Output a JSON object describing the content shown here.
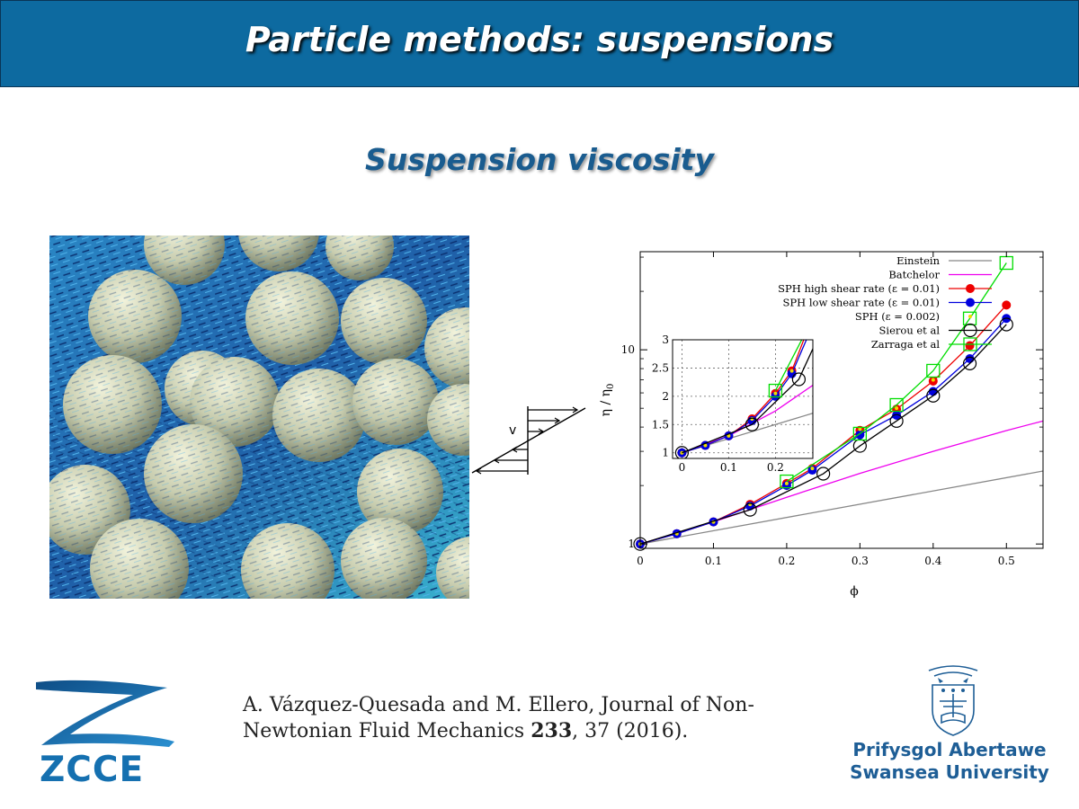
{
  "header": {
    "title": "Particle methods: suspensions"
  },
  "subtitle": "Suspension viscosity",
  "flow_diagram": {
    "label": "v"
  },
  "chart_data": {
    "type": "line",
    "xlabel": "ϕ",
    "ylabel": "η / η0",
    "ylabel_main": "η / η",
    "ylabel_sub": "0",
    "yscale": "log",
    "xlim": [
      0,
      0.55
    ],
    "ylim": [
      0.95,
      32
    ],
    "x_ticks": [
      "0",
      "0.1",
      "0.2",
      "0.3",
      "0.4",
      "0.5"
    ],
    "y_ticks": [
      "1",
      "10"
    ],
    "legend_position": "top-right",
    "series": [
      {
        "name": "Einstein",
        "color": "#888888",
        "kind": "line",
        "x": [
          0,
          0.55
        ],
        "y": [
          1,
          2.375
        ]
      },
      {
        "name": "Batchelor",
        "color": "#ee00ee",
        "kind": "line",
        "x": [
          0,
          0.1,
          0.2,
          0.3,
          0.4,
          0.5,
          0.55
        ],
        "y": [
          1,
          1.3,
          1.74,
          2.31,
          3.0,
          3.84,
          4.3
        ]
      },
      {
        "name": "SPH high shear rate (ε = 0.01)",
        "color": "#ee0000",
        "kind": "line-filled",
        "x": [
          0,
          0.05,
          0.1,
          0.15,
          0.2,
          0.235,
          0.3,
          0.35,
          0.4,
          0.45,
          0.5
        ],
        "y": [
          1,
          1.13,
          1.3,
          1.6,
          2.05,
          2.45,
          3.85,
          4.95,
          6.9,
          10.5,
          17
        ]
      },
      {
        "name": "SPH low shear rate (ε = 0.01)",
        "color": "#0000dd",
        "kind": "line-filled",
        "x": [
          0,
          0.05,
          0.1,
          0.15,
          0.2,
          0.235,
          0.3,
          0.35,
          0.4,
          0.45,
          0.5
        ],
        "y": [
          1,
          1.13,
          1.3,
          1.57,
          2.0,
          2.4,
          3.65,
          4.6,
          6.1,
          9.0,
          14.5
        ]
      },
      {
        "name": "SPH (ε = 0.002)",
        "color": "#eedd00",
        "kind": "dots",
        "x": [
          0,
          0.05,
          0.1,
          0.15,
          0.2,
          0.235,
          0.3,
          0.35,
          0.4
        ],
        "y": [
          1,
          1.13,
          1.3,
          1.6,
          2.05,
          2.45,
          3.9,
          5.0,
          7.0
        ]
      },
      {
        "name": "Sierou et al",
        "color": "#000000",
        "kind": "line-open-circle",
        "x": [
          0,
          0.15,
          0.25,
          0.3,
          0.35,
          0.4,
          0.45,
          0.5
        ],
        "y": [
          1,
          1.5,
          2.3,
          3.2,
          4.3,
          5.8,
          8.5,
          13.5
        ]
      },
      {
        "name": "Zarraga et al",
        "color": "#00dd00",
        "kind": "line-open-square",
        "x": [
          0.2,
          0.3,
          0.35,
          0.4,
          0.45,
          0.5
        ],
        "y": [
          2.1,
          3.7,
          5.2,
          7.8,
          14.5,
          28
        ]
      }
    ],
    "inset": {
      "xlim": [
        -0.02,
        0.28
      ],
      "ylim": [
        0.9,
        3.0
      ],
      "x_ticks": [
        "0",
        "0.1",
        "0.2"
      ],
      "y_ticks": [
        "1",
        "1.5",
        "2",
        "2.5",
        "3"
      ],
      "grid": true
    }
  },
  "citation": {
    "line1": "A. Vázquez-Quesada and M. Ellero, Journal of Non-",
    "line2_prefix": "Newtonian Fluid Mechanics ",
    "line2_volume": "233",
    "line2_suffix": ", 37 (2016)."
  },
  "logo_left": {
    "text": "ZCCE"
  },
  "logo_right": {
    "line1": "Prifysgol Abertawe",
    "line2": "Swansea University"
  },
  "colors": {
    "header_bg": "#0d6aa0",
    "subtitle": "#1a5c8f",
    "university_blue": "#1e5e96",
    "zcce_blue": "#1570b0"
  }
}
